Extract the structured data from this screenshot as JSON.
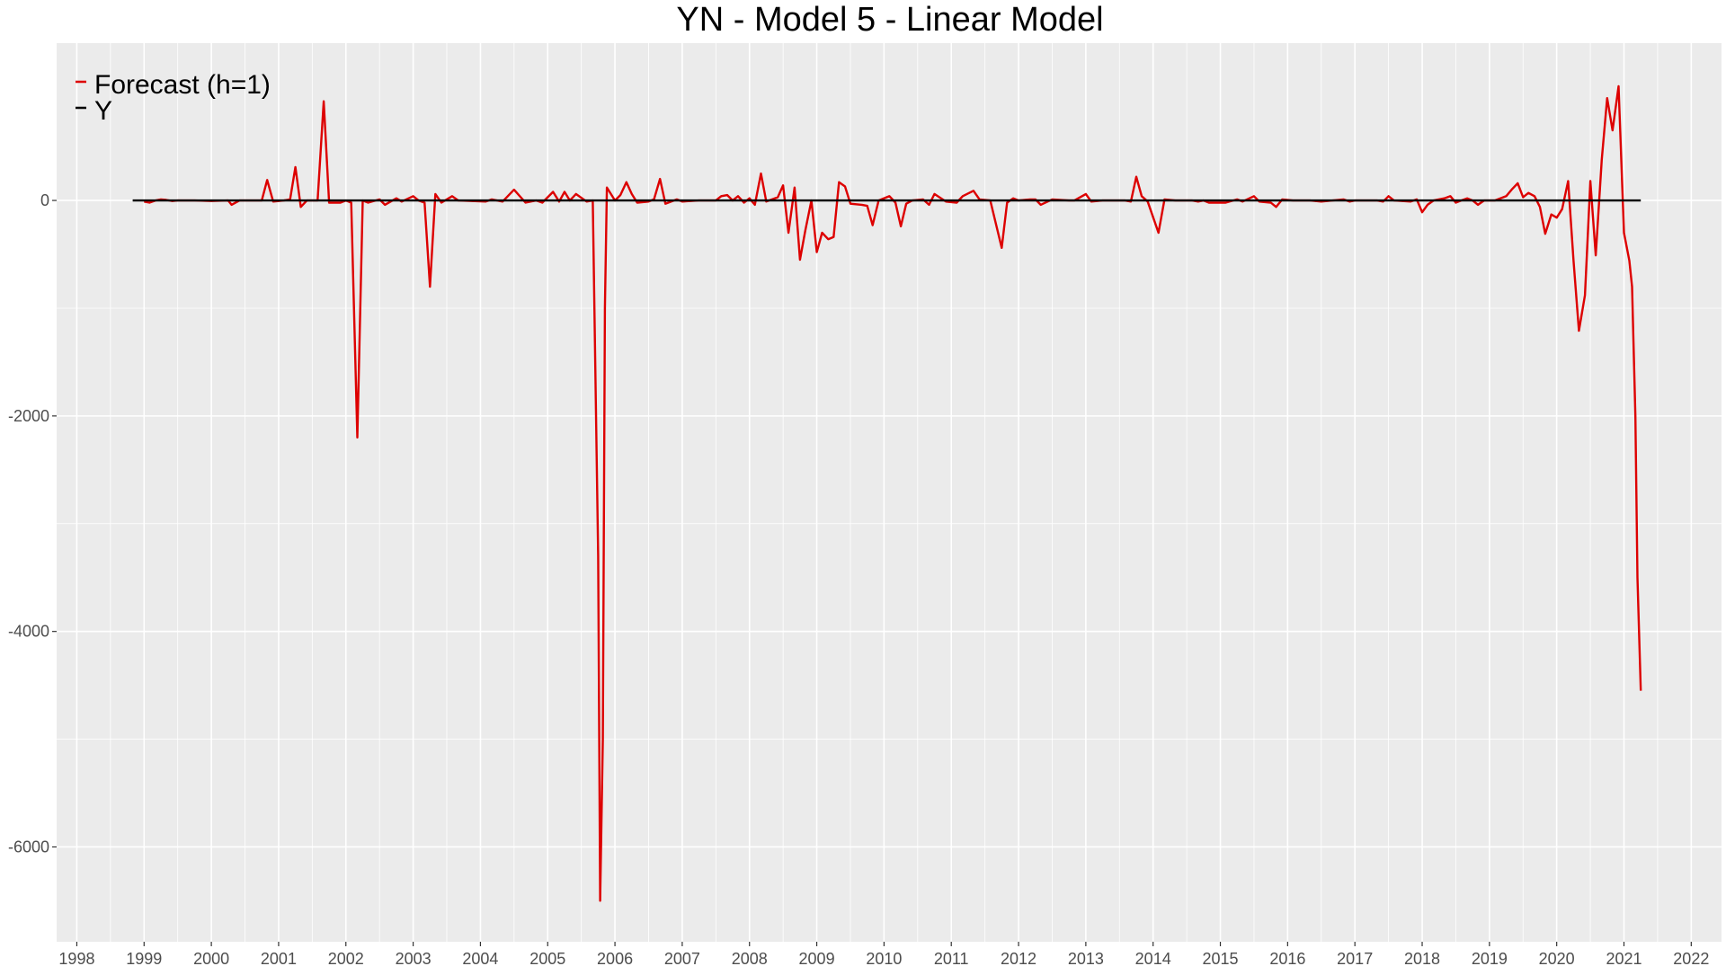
{
  "chart_data": {
    "type": "line",
    "title": "YN - Model 5 - Linear Model",
    "xlabel": "",
    "ylabel": "",
    "xlim": [
      1997.7,
      2022.45
    ],
    "ylim": [
      -6880,
      1460
    ],
    "x_ticks": [
      1998,
      1999,
      2000,
      2001,
      2002,
      2003,
      2004,
      2005,
      2006,
      2007,
      2008,
      2009,
      2010,
      2011,
      2012,
      2013,
      2014,
      2015,
      2016,
      2017,
      2018,
      2019,
      2020,
      2021,
      2022
    ],
    "y_ticks": [
      0,
      -2000,
      -4000,
      -6000
    ],
    "grid": true,
    "legend_position": "top-left",
    "colors": {
      "forecast": "#dd0000",
      "y": "#000000",
      "panel": "#ebebeb",
      "grid": "#ffffff"
    },
    "legend": [
      "Forecast (h=1)",
      "Y"
    ],
    "series": [
      {
        "name": "Forecast (h=1)",
        "color": "#dd0000",
        "points": [
          [
            1999.0,
            -10
          ],
          [
            1999.08,
            -20
          ],
          [
            1999.17,
            0
          ],
          [
            1999.25,
            10
          ],
          [
            1999.33,
            5
          ],
          [
            1999.42,
            -5
          ],
          [
            1999.5,
            0
          ],
          [
            1999.75,
            0
          ],
          [
            2000.0,
            -5
          ],
          [
            2000.25,
            0
          ],
          [
            2000.3,
            -40
          ],
          [
            2000.42,
            0
          ],
          [
            2000.75,
            0
          ],
          [
            2000.83,
            190
          ],
          [
            2000.92,
            -10
          ],
          [
            2001.08,
            0
          ],
          [
            2001.17,
            10
          ],
          [
            2001.25,
            310
          ],
          [
            2001.33,
            -60
          ],
          [
            2001.42,
            0
          ],
          [
            2001.58,
            0
          ],
          [
            2001.67,
            920
          ],
          [
            2001.75,
            -20
          ],
          [
            2001.92,
            -20
          ],
          [
            2002.0,
            0
          ],
          [
            2002.08,
            -20
          ],
          [
            2002.17,
            -2200
          ],
          [
            2002.25,
            0
          ],
          [
            2002.33,
            -20
          ],
          [
            2002.5,
            10
          ],
          [
            2002.58,
            -40
          ],
          [
            2002.75,
            20
          ],
          [
            2002.83,
            -10
          ],
          [
            2003.0,
            40
          ],
          [
            2003.08,
            0
          ],
          [
            2003.17,
            -20
          ],
          [
            2003.25,
            -800
          ],
          [
            2003.33,
            60
          ],
          [
            2003.42,
            -20
          ],
          [
            2003.58,
            40
          ],
          [
            2003.67,
            0
          ],
          [
            2004.08,
            -10
          ],
          [
            2004.17,
            10
          ],
          [
            2004.33,
            -10
          ],
          [
            2004.5,
            100
          ],
          [
            2004.67,
            -20
          ],
          [
            2004.83,
            0
          ],
          [
            2004.92,
            -20
          ],
          [
            2005.08,
            80
          ],
          [
            2005.17,
            -10
          ],
          [
            2005.25,
            80
          ],
          [
            2005.33,
            0
          ],
          [
            2005.42,
            60
          ],
          [
            2005.58,
            -10
          ],
          [
            2005.67,
            0
          ],
          [
            2005.75,
            -3300
          ],
          [
            2005.78,
            -6500
          ],
          [
            2005.82,
            -5000
          ],
          [
            2005.85,
            -1000
          ],
          [
            2005.88,
            120
          ],
          [
            2005.92,
            80
          ],
          [
            2006.0,
            0
          ],
          [
            2006.08,
            50
          ],
          [
            2006.17,
            170
          ],
          [
            2006.25,
            60
          ],
          [
            2006.33,
            -20
          ],
          [
            2006.5,
            -10
          ],
          [
            2006.58,
            10
          ],
          [
            2006.67,
            200
          ],
          [
            2006.75,
            -30
          ],
          [
            2006.92,
            10
          ],
          [
            2007.0,
            -10
          ],
          [
            2007.25,
            0
          ],
          [
            2007.5,
            0
          ],
          [
            2007.58,
            40
          ],
          [
            2007.67,
            50
          ],
          [
            2007.75,
            0
          ],
          [
            2007.83,
            40
          ],
          [
            2007.92,
            -20
          ],
          [
            2008.0,
            20
          ],
          [
            2008.08,
            -40
          ],
          [
            2008.17,
            250
          ],
          [
            2008.25,
            -10
          ],
          [
            2008.42,
            30
          ],
          [
            2008.5,
            140
          ],
          [
            2008.58,
            -300
          ],
          [
            2008.67,
            120
          ],
          [
            2008.75,
            -550
          ],
          [
            2008.83,
            -280
          ],
          [
            2008.92,
            0
          ],
          [
            2009.0,
            -480
          ],
          [
            2009.08,
            -300
          ],
          [
            2009.17,
            -360
          ],
          [
            2009.25,
            -340
          ],
          [
            2009.33,
            170
          ],
          [
            2009.42,
            130
          ],
          [
            2009.5,
            -30
          ],
          [
            2009.67,
            -40
          ],
          [
            2009.75,
            -50
          ],
          [
            2009.83,
            -230
          ],
          [
            2009.92,
            0
          ],
          [
            2010.08,
            40
          ],
          [
            2010.17,
            -20
          ],
          [
            2010.25,
            -240
          ],
          [
            2010.33,
            -30
          ],
          [
            2010.42,
            0
          ],
          [
            2010.58,
            10
          ],
          [
            2010.67,
            -40
          ],
          [
            2010.75,
            60
          ],
          [
            2010.92,
            -10
          ],
          [
            2011.08,
            -20
          ],
          [
            2011.17,
            40
          ],
          [
            2011.33,
            90
          ],
          [
            2011.42,
            10
          ],
          [
            2011.58,
            0
          ],
          [
            2011.75,
            -440
          ],
          [
            2011.83,
            -20
          ],
          [
            2011.92,
            20
          ],
          [
            2012.0,
            0
          ],
          [
            2012.17,
            10
          ],
          [
            2012.25,
            10
          ],
          [
            2012.33,
            -40
          ],
          [
            2012.5,
            10
          ],
          [
            2012.75,
            0
          ],
          [
            2012.83,
            0
          ],
          [
            2013.0,
            60
          ],
          [
            2013.08,
            -10
          ],
          [
            2013.25,
            0
          ],
          [
            2013.58,
            0
          ],
          [
            2013.67,
            -10
          ],
          [
            2013.75,
            220
          ],
          [
            2013.83,
            40
          ],
          [
            2013.92,
            -10
          ],
          [
            2014.08,
            -300
          ],
          [
            2014.17,
            10
          ],
          [
            2014.33,
            0
          ],
          [
            2014.58,
            0
          ],
          [
            2014.67,
            -10
          ],
          [
            2014.75,
            0
          ],
          [
            2014.83,
            -20
          ],
          [
            2015.08,
            -20
          ],
          [
            2015.25,
            10
          ],
          [
            2015.33,
            -10
          ],
          [
            2015.5,
            40
          ],
          [
            2015.58,
            -10
          ],
          [
            2015.75,
            -20
          ],
          [
            2015.83,
            -60
          ],
          [
            2015.92,
            10
          ],
          [
            2016.08,
            0
          ],
          [
            2016.33,
            0
          ],
          [
            2016.5,
            -10
          ],
          [
            2016.67,
            0
          ],
          [
            2016.83,
            10
          ],
          [
            2016.92,
            -10
          ],
          [
            2017.0,
            0
          ],
          [
            2017.33,
            0
          ],
          [
            2017.42,
            -10
          ],
          [
            2017.5,
            40
          ],
          [
            2017.58,
            0
          ],
          [
            2017.83,
            -10
          ],
          [
            2017.92,
            10
          ],
          [
            2018.0,
            -110
          ],
          [
            2018.08,
            -40
          ],
          [
            2018.17,
            0
          ],
          [
            2018.33,
            20
          ],
          [
            2018.42,
            40
          ],
          [
            2018.5,
            -20
          ],
          [
            2018.58,
            0
          ],
          [
            2018.67,
            20
          ],
          [
            2018.75,
            0
          ],
          [
            2018.83,
            -40
          ],
          [
            2018.92,
            0
          ],
          [
            2019.08,
            0
          ],
          [
            2019.25,
            40
          ],
          [
            2019.33,
            100
          ],
          [
            2019.42,
            160
          ],
          [
            2019.5,
            30
          ],
          [
            2019.58,
            70
          ],
          [
            2019.67,
            40
          ],
          [
            2019.75,
            -60
          ],
          [
            2019.83,
            -310
          ],
          [
            2019.92,
            -130
          ],
          [
            2020.0,
            -160
          ],
          [
            2020.08,
            -80
          ],
          [
            2020.17,
            180
          ],
          [
            2020.25,
            -560
          ],
          [
            2020.33,
            -1210
          ],
          [
            2020.42,
            -880
          ],
          [
            2020.5,
            180
          ],
          [
            2020.58,
            -510
          ],
          [
            2020.67,
            380
          ],
          [
            2020.75,
            950
          ],
          [
            2020.83,
            650
          ],
          [
            2020.92,
            1060
          ],
          [
            2021.0,
            -300
          ],
          [
            2021.08,
            -560
          ],
          [
            2021.12,
            -800
          ],
          [
            2021.17,
            -2000
          ],
          [
            2021.2,
            -3500
          ],
          [
            2021.25,
            -4550
          ]
        ]
      },
      {
        "name": "Y",
        "color": "#000000",
        "points": [
          [
            1998.83,
            0
          ],
          [
            2021.25,
            0
          ]
        ]
      }
    ]
  }
}
